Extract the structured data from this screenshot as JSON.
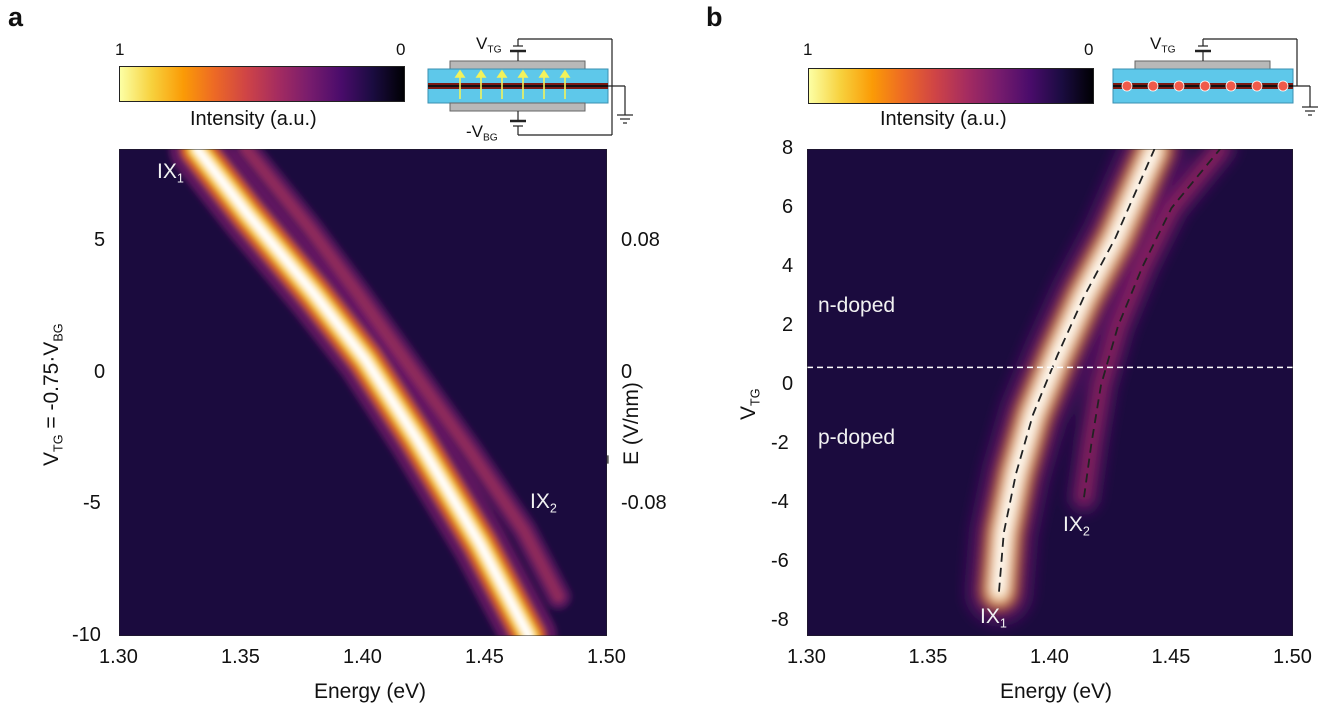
{
  "panels": [
    {
      "id": "a",
      "letter": "a",
      "colorbar": {
        "max_label": "1",
        "min_label": "0",
        "label": "Intensity (a.u.)"
      },
      "schematic": {
        "top_gate_label": "V",
        "top_gate_sub": "TG",
        "bottom_gate_label": "-V",
        "bottom_gate_sub": "BG"
      },
      "annotations": {
        "ix1": "IX",
        "ix1_sub": "1",
        "ix2": "IX",
        "ix2_sub": "2"
      },
      "ylabel_parts": [
        "V",
        "TG",
        " = -0.75·V",
        "BG"
      ],
      "right_ylabel": "E (V/nm)",
      "right_ylabel_bar": "‾"
    },
    {
      "id": "b",
      "letter": "b",
      "colorbar": {
        "max_label": "1",
        "min_label": "0",
        "label": "Intensity (a.u.)"
      },
      "schematic": {
        "top_gate_label": "V",
        "top_gate_sub": "TG"
      },
      "annotations": {
        "ix1": "IX",
        "ix1_sub": "1",
        "ix2": "IX",
        "ix2_sub": "2",
        "n_doped": "n-doped",
        "p_doped": "p-doped"
      },
      "ylabel_parts": [
        "V",
        "TG"
      ]
    }
  ],
  "chart_data": [
    {
      "type": "heatmap",
      "title": "",
      "xlabel": "Energy (eV)",
      "ylabel": "VTG = -0.75·VBG",
      "right_ylabel": "E (V/nm)",
      "xlim": [
        1.3,
        1.5
      ],
      "ylim": [
        -10,
        8.5
      ],
      "x_ticks": [
        "1.30",
        "1.35",
        "1.40",
        "1.45",
        "1.50"
      ],
      "x_tick_values": [
        1.3,
        1.35,
        1.4,
        1.45,
        1.5
      ],
      "y_ticks": [
        "-10",
        "-5",
        "0",
        "5"
      ],
      "y_tick_values": [
        -10,
        -5,
        0,
        5
      ],
      "right_y_ticks": [
        "-0.08",
        "0",
        "0.08"
      ],
      "right_y_tick_values": [
        -5,
        0,
        5
      ],
      "colormap": "inferno",
      "colorbar_range": [
        0,
        1
      ],
      "series": [
        {
          "name": "IX1",
          "x": [
            1.332,
            1.353,
            1.38,
            1.401,
            1.422,
            1.448,
            1.468
          ],
          "y": [
            8.5,
            6.0,
            3.0,
            0.5,
            -2.5,
            -6.5,
            -10.0
          ]
        },
        {
          "name": "IX2",
          "x": [
            1.352,
            1.378,
            1.398,
            1.421,
            1.444,
            1.466,
            1.48
          ],
          "y": [
            8.5,
            5.5,
            3.0,
            0.0,
            -3.0,
            -6.0,
            -8.5
          ]
        }
      ]
    },
    {
      "type": "heatmap",
      "title": "",
      "xlabel": "Energy (eV)",
      "ylabel": "VTG",
      "xlim": [
        1.3,
        1.5
      ],
      "ylim": [
        -8.5,
        8
      ],
      "x_ticks": [
        "1.30",
        "1.35",
        "1.40",
        "1.45",
        "1.50"
      ],
      "x_tick_values": [
        1.3,
        1.35,
        1.4,
        1.45,
        1.5
      ],
      "y_ticks": [
        "-8",
        "-6",
        "-4",
        "-2",
        "0",
        "2",
        "4",
        "6",
        "8"
      ],
      "y_tick_values": [
        -8,
        -6,
        -4,
        -2,
        0,
        2,
        4,
        6,
        8
      ],
      "colormap": "inferno",
      "colorbar_range": [
        0,
        1
      ],
      "dashed_line_y": 0.6,
      "series": [
        {
          "name": "IX1",
          "x": [
            1.379,
            1.381,
            1.386,
            1.393,
            1.403,
            1.414,
            1.427,
            1.443
          ],
          "y": [
            -7.0,
            -5.0,
            -3.0,
            -1.0,
            1.0,
            3.0,
            5.0,
            8.0
          ]
        },
        {
          "name": "IX2",
          "x": [
            1.414,
            1.417,
            1.421,
            1.428,
            1.438,
            1.45,
            1.47
          ],
          "y": [
            -3.8,
            -2.0,
            0.0,
            2.0,
            4.0,
            6.0,
            8.0
          ]
        }
      ]
    }
  ]
}
